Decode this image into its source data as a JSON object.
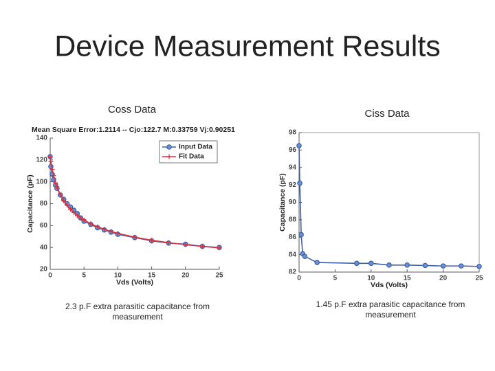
{
  "title": "Device Measurement Results",
  "chart_data": [
    {
      "type": "line",
      "heading": "Coss Data",
      "title": "Mean Square Error:1.2114  --  Cjo:122.7  M:0.33759  Vj:0.90251",
      "caption": "2.3 p.F extra parasitic capacitance from measurement",
      "xlabel": "Vds (Volts)",
      "ylabel": "Capacitance (pF)",
      "x": [
        0,
        0.1,
        0.3,
        0.5,
        0.8,
        1,
        1.5,
        2,
        2.5,
        3,
        3.5,
        4,
        4.5,
        5,
        6,
        7,
        8,
        9,
        10,
        12.5,
        15,
        17.5,
        20,
        22.5,
        25
      ],
      "xlim": [
        0,
        25
      ],
      "xticks": [
        0,
        5,
        10,
        15,
        20,
        25
      ],
      "ylim": [
        20,
        140
      ],
      "yticks": [
        20,
        40,
        60,
        80,
        100,
        120,
        140
      ],
      "box": false,
      "legend": "upper right",
      "series": [
        {
          "name": "Input Data",
          "color": "#3a5fa8",
          "marker": "circle",
          "values": [
            123,
            114,
            107,
            102,
            97,
            94,
            88,
            84,
            80,
            77,
            74,
            71,
            67,
            64,
            61,
            58,
            56,
            54,
            52,
            49,
            46,
            44,
            43,
            41,
            40
          ]
        },
        {
          "name": "Fit Data",
          "color": "#e0303a",
          "marker": "plus",
          "values": [
            122.7,
            118.4,
            111.4,
            105.7,
            99.0,
            95.4,
            88.2,
            82.8,
            78.5,
            74.9,
            71.9,
            69.1,
            67.0,
            65.0,
            61.7,
            58.9,
            56.6,
            54.6,
            52.9,
            49.4,
            46.6,
            44.4,
            42.5,
            40.9,
            39.6
          ]
        }
      ]
    },
    {
      "type": "line",
      "heading": "Ciss Data",
      "caption": "1.45 p.F extra parasitic capacitance from measurement",
      "xlabel": "Vds (Volts)",
      "ylabel": "Capacitance (pF)",
      "x": [
        0,
        0.1,
        0.3,
        0.5,
        0.8,
        2.5,
        8,
        10,
        12.5,
        15,
        17.5,
        20,
        22.5,
        25
      ],
      "xlim": [
        0,
        25
      ],
      "xticks": [
        0,
        5,
        10,
        15,
        20,
        25
      ],
      "ylim": [
        82,
        98
      ],
      "yticks": [
        82,
        84,
        86,
        88,
        90,
        92,
        94,
        96,
        98
      ],
      "box": true,
      "series": [
        {
          "name": "Ciss",
          "color": "#3a5fa8",
          "marker": "circle",
          "values": [
            96.5,
            92.2,
            86.3,
            84.1,
            83.8,
            83.1,
            83.0,
            83.0,
            82.8,
            82.8,
            82.75,
            82.7,
            82.7,
            82.65
          ]
        }
      ]
    }
  ]
}
